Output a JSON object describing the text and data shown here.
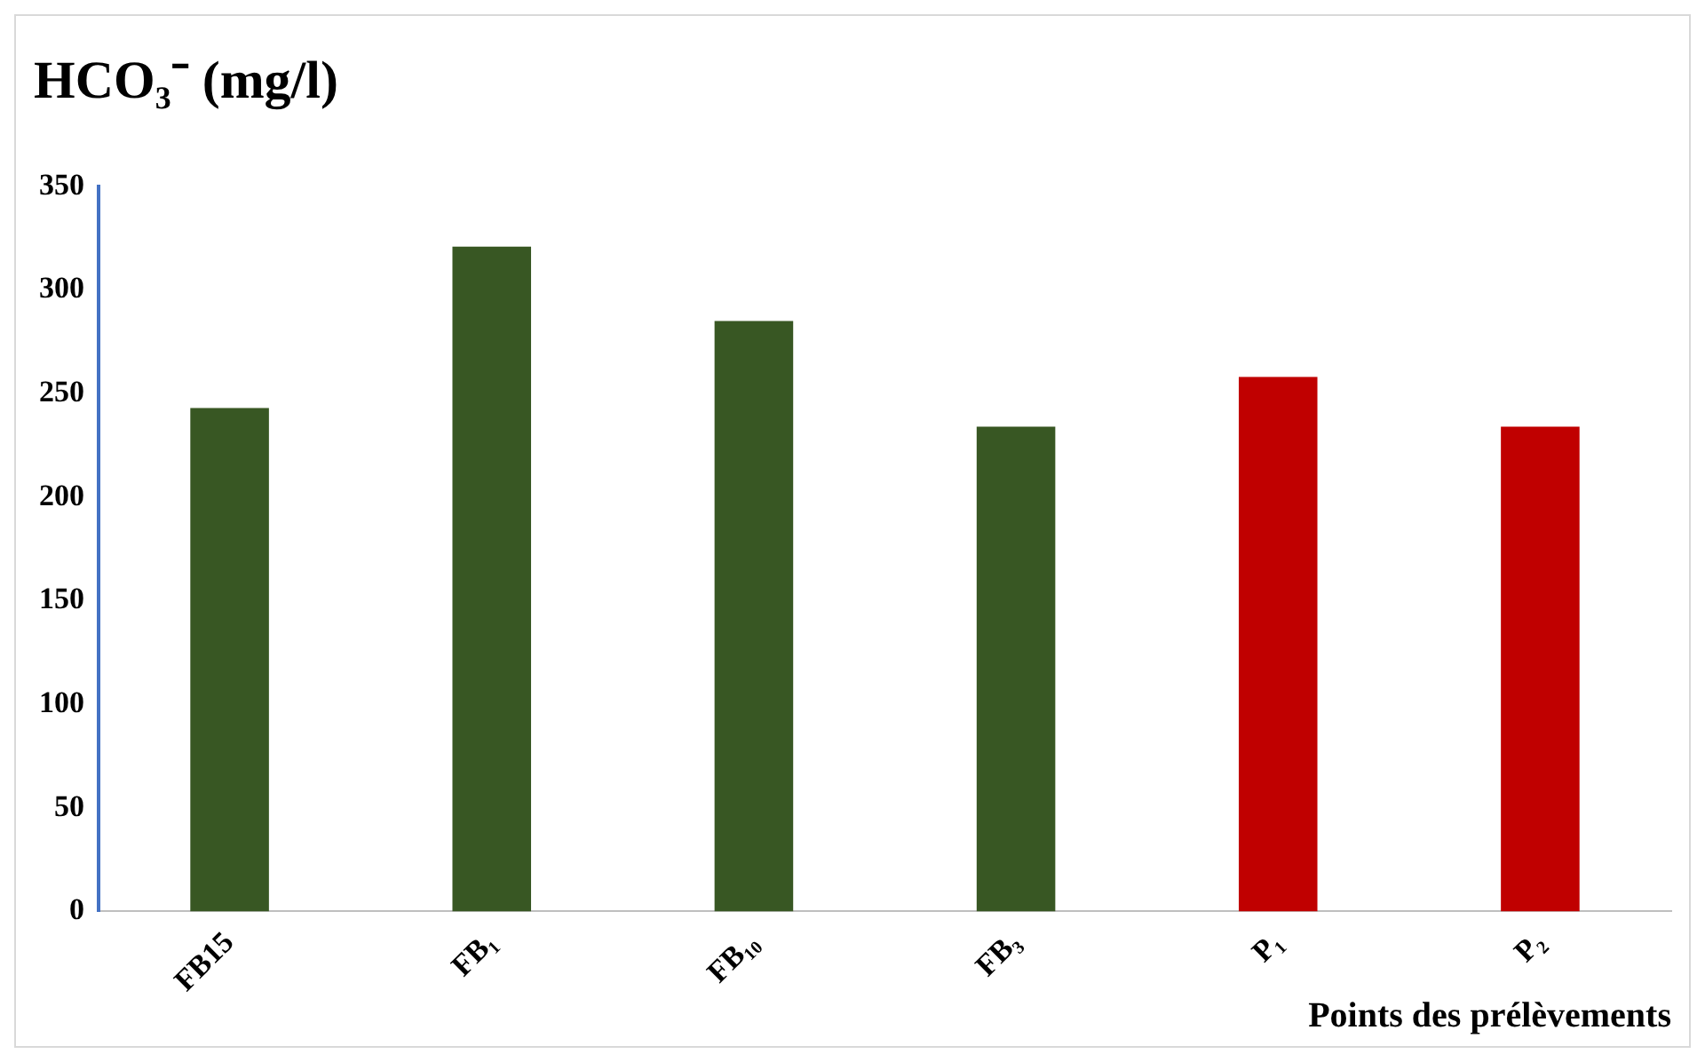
{
  "chart_data": {
    "type": "bar",
    "title": "HCO₃⁻ (mg/l)",
    "xlabel": "Points des prélèvements",
    "categories": [
      "FB15",
      "FB₁",
      "FB₁₀",
      "FB₃",
      "P₁",
      "P₂"
    ],
    "values": [
      243,
      321,
      285,
      234,
      258,
      234
    ],
    "colors": [
      "#385723",
      "#385723",
      "#385723",
      "#385723",
      "#c00000",
      "#c00000"
    ],
    "ylim": [
      0,
      350
    ],
    "yticks": [
      0,
      50,
      100,
      150,
      200,
      250,
      300,
      350
    ],
    "grid": false,
    "legend": false
  }
}
